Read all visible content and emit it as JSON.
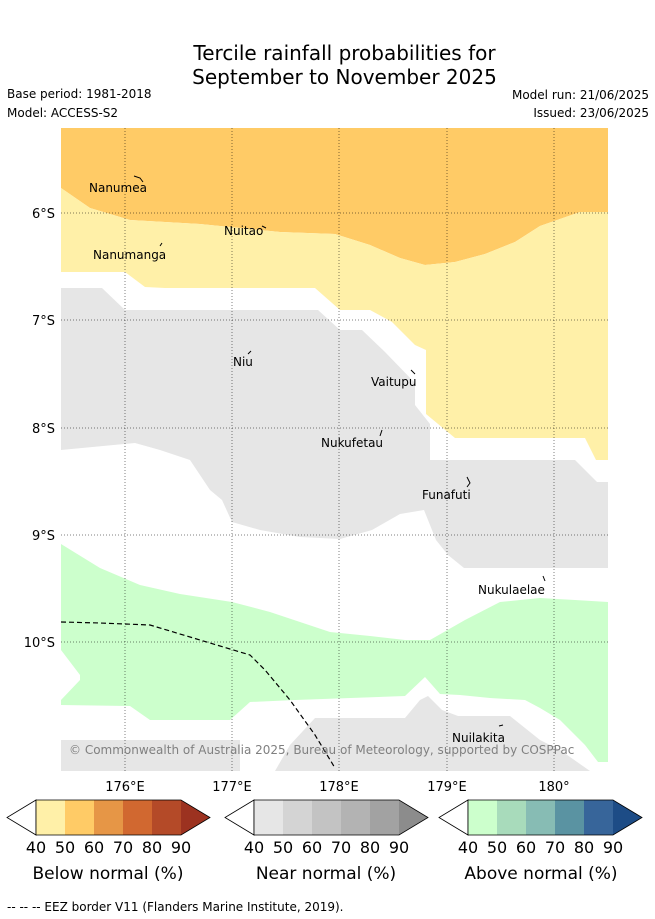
{
  "title_line1": "Tercile rainfall probabilities for",
  "title_line2": "September to November 2025",
  "base_period": "Base period: 1981-2018",
  "model": "Model: ACCESS-S2",
  "model_run": "Model run: 21/06/2025",
  "issued": "Issued: 23/06/2025",
  "copyright": "© Commonwealth of Australia 2025, Bureau of Meteorology, supported by COSPPac",
  "footer": "--  --  -- EEZ border V11 (Flanders Marine Institute, 2019).",
  "map": {
    "lat_labels": [
      "6°S",
      "7°S",
      "8°S",
      "9°S",
      "10°S"
    ],
    "lon_labels": [
      "176°E",
      "177°E",
      "178°E",
      "179°E",
      "180°"
    ],
    "places": [
      "Nanumea",
      "Nuitao",
      "Nanumanga",
      "Niu",
      "Vaitupu",
      "Nukufetau",
      "Funafuti",
      "Nukulaelae",
      "Nuilakita"
    ]
  },
  "legends": [
    {
      "title": "Below normal (%)",
      "ticks": [
        "40",
        "50",
        "60",
        "70",
        "80",
        "90"
      ],
      "colors": [
        "#fff0a8",
        "#ffcb66",
        "#e69646",
        "#d16830",
        "#b44a28",
        "#9c3220"
      ]
    },
    {
      "title": "Near normal (%)",
      "ticks": [
        "40",
        "50",
        "60",
        "70",
        "80",
        "90"
      ],
      "colors": [
        "#e6e6e6",
        "#d4d4d4",
        "#c3c3c3",
        "#b3b3b3",
        "#a2a2a2",
        "#8c8c8c"
      ]
    },
    {
      "title": "Above normal (%)",
      "ticks": [
        "40",
        "50",
        "60",
        "70",
        "80",
        "90"
      ],
      "colors": [
        "#ccffcc",
        "#a8dbbb",
        "#87bcb4",
        "#5a93a2",
        "#37659a",
        "#1d4c86"
      ]
    }
  ]
}
